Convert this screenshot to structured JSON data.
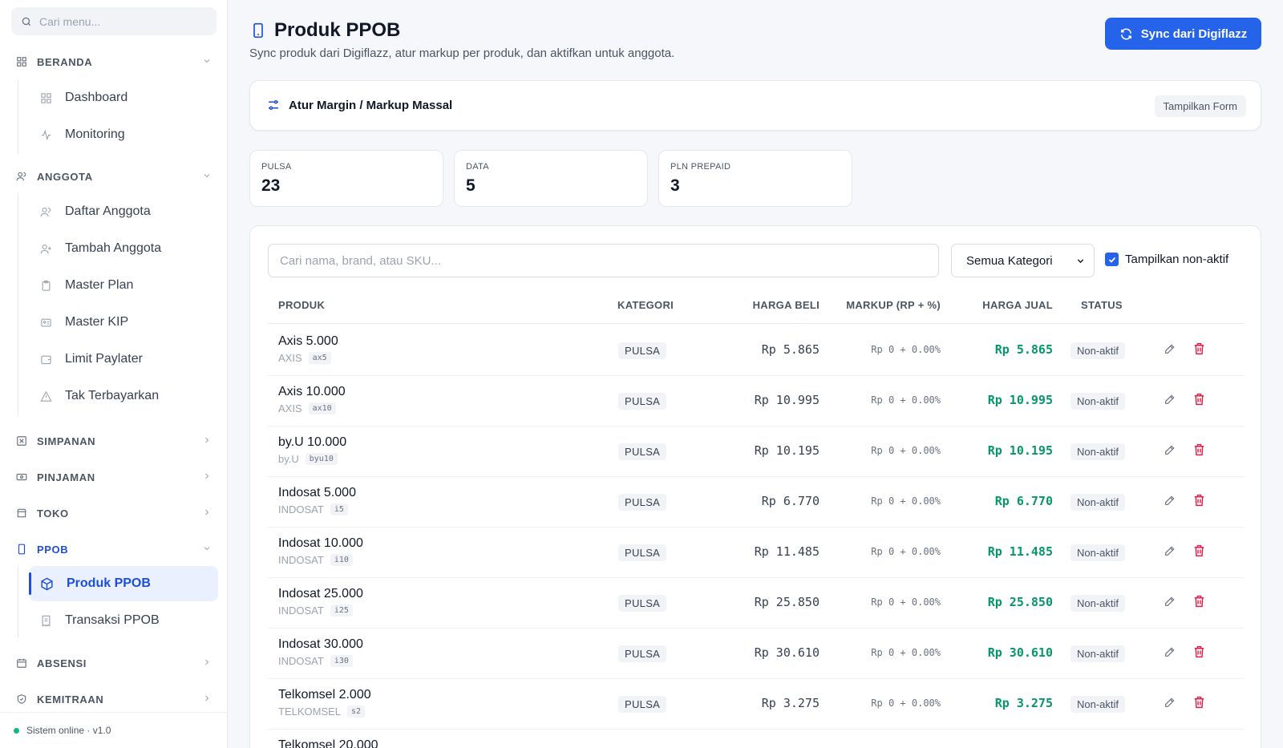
{
  "sidebar": {
    "search_placeholder": "Cari menu...",
    "sections": [
      {
        "label": "BERANDA",
        "items": [
          "Dashboard",
          "Monitoring"
        ]
      },
      {
        "label": "ANGGOTA",
        "items": [
          "Daftar Anggota",
          "Tambah Anggota",
          "Master Plan",
          "Master KIP",
          "Limit Paylater",
          "Tak Terbayarkan"
        ]
      },
      {
        "label": "SIMPANAN"
      },
      {
        "label": "PINJAMAN"
      },
      {
        "label": "TOKO"
      },
      {
        "label": "PPOB",
        "items": [
          "Produk PPOB",
          "Transaksi PPOB"
        ]
      },
      {
        "label": "ABSENSI"
      },
      {
        "label": "KEMITRAAN"
      }
    ],
    "footer": "Sistem online · v1.0"
  },
  "header": {
    "title": "Produk PPOB",
    "subtitle": "Sync produk dari Digiflazz, atur markup per produk, dan aktifkan untuk anggota.",
    "sync_button": "Sync dari Digiflazz"
  },
  "margin_card": {
    "title": "Atur Margin / Markup Massal",
    "toggle_button": "Tampilkan Form"
  },
  "stats": [
    {
      "label": "PULSA",
      "value": "23"
    },
    {
      "label": "DATA",
      "value": "5"
    },
    {
      "label": "PLN PREPAID",
      "value": "3"
    }
  ],
  "filters": {
    "search_placeholder": "Cari nama, brand, atau SKU...",
    "category_selected": "Semua Kategori",
    "show_inactive_label": "Tampilkan non-aktif",
    "show_inactive_checked": true
  },
  "table": {
    "columns": [
      "PRODUK",
      "KATEGORI",
      "HARGA BELI",
      "MARKUP (RP + %)",
      "HARGA JUAL",
      "STATUS"
    ],
    "rows": [
      {
        "name": "Axis 5.000",
        "brand": "AXIS",
        "sku": "ax5",
        "category": "PULSA",
        "buy": "Rp 5.865",
        "markup": "Rp 0 + 0.00%",
        "sell": "Rp 5.865",
        "status": "Non-aktif"
      },
      {
        "name": "Axis 10.000",
        "brand": "AXIS",
        "sku": "ax10",
        "category": "PULSA",
        "buy": "Rp 10.995",
        "markup": "Rp 0 + 0.00%",
        "sell": "Rp 10.995",
        "status": "Non-aktif"
      },
      {
        "name": "by.U 10.000",
        "brand": "by.U",
        "sku": "byu10",
        "category": "PULSA",
        "buy": "Rp 10.195",
        "markup": "Rp 0 + 0.00%",
        "sell": "Rp 10.195",
        "status": "Non-aktif"
      },
      {
        "name": "Indosat 5.000",
        "brand": "INDOSAT",
        "sku": "i5",
        "category": "PULSA",
        "buy": "Rp 6.770",
        "markup": "Rp 0 + 0.00%",
        "sell": "Rp 6.770",
        "status": "Non-aktif"
      },
      {
        "name": "Indosat 10.000",
        "brand": "INDOSAT",
        "sku": "i10",
        "category": "PULSA",
        "buy": "Rp 11.485",
        "markup": "Rp 0 + 0.00%",
        "sell": "Rp 11.485",
        "status": "Non-aktif"
      },
      {
        "name": "Indosat 25.000",
        "brand": "INDOSAT",
        "sku": "i25",
        "category": "PULSA",
        "buy": "Rp 25.850",
        "markup": "Rp 0 + 0.00%",
        "sell": "Rp 25.850",
        "status": "Non-aktif"
      },
      {
        "name": "Indosat 30.000",
        "brand": "INDOSAT",
        "sku": "i30",
        "category": "PULSA",
        "buy": "Rp 30.610",
        "markup": "Rp 0 + 0.00%",
        "sell": "Rp 30.610",
        "status": "Non-aktif"
      },
      {
        "name": "Telkomsel 2.000",
        "brand": "TELKOMSEL",
        "sku": "s2",
        "category": "PULSA",
        "buy": "Rp 3.275",
        "markup": "Rp 0 + 0.00%",
        "sell": "Rp 3.275",
        "status": "Non-aktif"
      },
      {
        "name": "Telkomsel 20.000"
      }
    ]
  },
  "colors": {
    "accent": "#2563eb",
    "price": "#059669",
    "danger": "#e11d48"
  }
}
